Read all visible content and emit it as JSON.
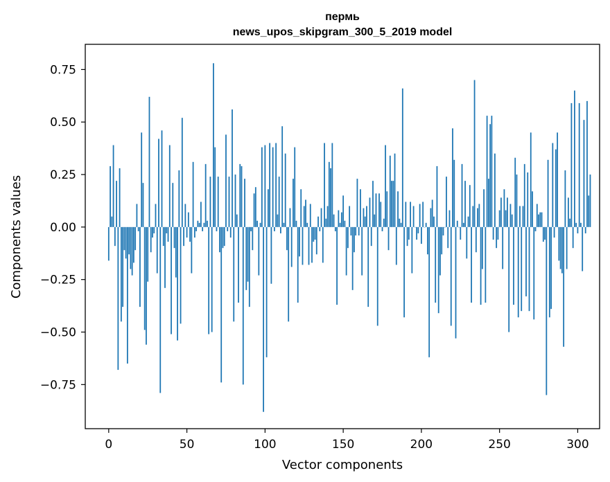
{
  "chart_data": {
    "type": "bar",
    "title": "пермь",
    "subtitle": "news_upos_skipgram_300_5_2019 model",
    "xlabel": "Vector components",
    "ylabel": "Components values",
    "xlim": [
      -15,
      314
    ],
    "ylim": [
      -0.96,
      0.87
    ],
    "xticks": [
      0,
      50,
      100,
      150,
      200,
      250,
      300
    ],
    "yticks": [
      -0.75,
      -0.5,
      -0.25,
      0.0,
      0.25,
      0.5,
      0.75
    ],
    "xtick_labels": [
      "0",
      "50",
      "100",
      "150",
      "200",
      "250",
      "300"
    ],
    "ytick_labels": [
      "−0.75",
      "−0.50",
      "−0.25",
      "0.00",
      "0.25",
      "0.50",
      "0.75"
    ],
    "bar_color": "#1f77b4",
    "grid": false,
    "values": [
      -0.16,
      0.29,
      0.05,
      0.39,
      -0.09,
      0.22,
      -0.68,
      0.28,
      -0.45,
      -0.38,
      -0.11,
      -0.15,
      -0.65,
      -0.13,
      -0.2,
      -0.23,
      -0.17,
      -0.11,
      0.11,
      -0.02,
      -0.38,
      0.45,
      0.21,
      -0.49,
      -0.56,
      -0.26,
      0.62,
      -0.12,
      -0.05,
      -0.03,
      0.11,
      -0.22,
      0.42,
      -0.79,
      0.46,
      -0.09,
      -0.29,
      -0.03,
      -0.07,
      0.39,
      -0.51,
      0.21,
      -0.1,
      -0.24,
      -0.54,
      0.27,
      -0.46,
      0.52,
      -0.09,
      0.11,
      -0.05,
      0.07,
      -0.07,
      -0.22,
      0.31,
      -0.05,
      -0.02,
      0.03,
      0.02,
      0.12,
      -0.02,
      0.02,
      0.3,
      0.03,
      -0.51,
      0.24,
      -0.5,
      0.78,
      0.38,
      -0.02,
      0.24,
      -0.12,
      -0.74,
      -0.1,
      -0.09,
      0.44,
      -0.02,
      0.24,
      -0.05,
      0.56,
      -0.45,
      0.25,
      0.06,
      -0.36,
      0.3,
      0.29,
      -0.75,
      0.23,
      -0.3,
      -0.26,
      -0.38,
      -0.02,
      -0.11,
      0.16,
      0.19,
      0.03,
      -0.23,
      0.02,
      0.38,
      -0.88,
      0.39,
      -0.62,
      0.18,
      0.4,
      -0.27,
      0.38,
      -0.02,
      0.4,
      0.06,
      0.24,
      -0.03,
      0.48,
      0.02,
      0.35,
      -0.11,
      -0.45,
      0.09,
      -0.19,
      0.23,
      0.38,
      0.03,
      -0.36,
      -0.14,
      0.18,
      -0.18,
      0.1,
      0.13,
      0.02,
      -0.18,
      0.11,
      -0.17,
      -0.07,
      -0.06,
      -0.13,
      0.05,
      -0.02,
      0.09,
      -0.17,
      0.4,
      0.04,
      0.1,
      0.31,
      0.28,
      0.4,
      0.06,
      -0.02,
      -0.37,
      0.08,
      0.02,
      0.07,
      0.15,
      0.03,
      -0.23,
      -0.1,
      0.1,
      -0.04,
      -0.3,
      -0.12,
      -0.04,
      0.23,
      -0.04,
      0.18,
      -0.23,
      0.09,
      0.05,
      0.1,
      -0.38,
      0.14,
      -0.09,
      0.22,
      0.06,
      0.16,
      -0.47,
      0.16,
      0.12,
      -0.02,
      0.04,
      0.39,
      0.17,
      -0.11,
      0.34,
      0.22,
      0.22,
      0.35,
      -0.18,
      0.17,
      0.04,
      0.02,
      0.66,
      -0.43,
      0.12,
      -0.09,
      -0.06,
      0.12,
      -0.22,
      0.1,
      0.0,
      -0.06,
      -0.03,
      0.11,
      -0.08,
      0.12,
      0.0,
      0.02,
      -0.13,
      -0.62,
      0.09,
      0.13,
      0.05,
      -0.36,
      0.29,
      -0.41,
      -0.23,
      -0.13,
      -0.04,
      0.0,
      0.24,
      -0.1,
      0.08,
      -0.47,
      0.47,
      0.32,
      -0.53,
      0.03,
      0.0,
      -0.06,
      0.3,
      0.02,
      0.22,
      -0.15,
      0.05,
      0.2,
      -0.36,
      0.1,
      0.7,
      -0.12,
      0.09,
      0.11,
      -0.37,
      -0.2,
      0.18,
      -0.36,
      0.53,
      0.23,
      0.49,
      0.53,
      -0.06,
      0.35,
      -0.1,
      -0.06,
      0.08,
      0.14,
      -0.2,
      0.18,
      0.08,
      0.14,
      -0.5,
      0.11,
      0.06,
      -0.37,
      0.33,
      0.25,
      -0.43,
      0.1,
      -0.4,
      0.1,
      0.3,
      -0.33,
      0.26,
      -0.4,
      0.45,
      0.17,
      -0.44,
      -0.02,
      0.11,
      0.06,
      0.07,
      0.07,
      -0.07,
      -0.06,
      -0.8,
      0.32,
      -0.43,
      -0.39,
      0.4,
      -0.05,
      0.37,
      0.45,
      -0.16,
      -0.2,
      -0.22,
      -0.57,
      0.27,
      -0.2,
      0.14,
      0.04,
      0.59,
      -0.1,
      0.65,
      0.02,
      -0.03,
      0.59,
      0.02,
      -0.21,
      0.51,
      -0.03,
      0.6,
      0.15,
      0.25
    ]
  }
}
